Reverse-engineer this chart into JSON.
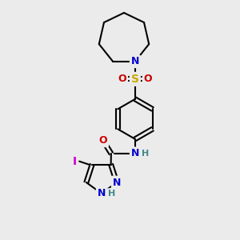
{
  "bg_color": "#ebebeb",
  "atom_colors": {
    "C": "#000000",
    "N": "#0000cc",
    "O": "#cc0000",
    "S": "#ccaa00",
    "I": "#cc00cc",
    "H": "#448888"
  }
}
